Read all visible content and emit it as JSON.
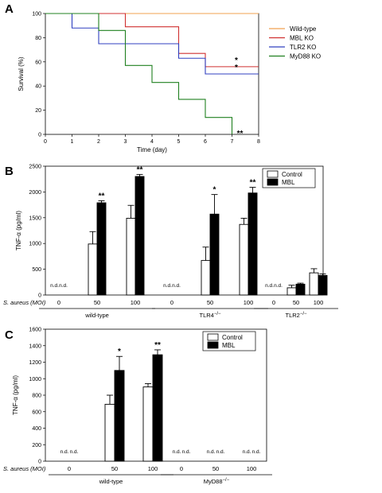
{
  "chart_data": [
    {
      "panel": "A",
      "type": "line",
      "xlabel": "Time (day)",
      "ylabel": "Survival (%)",
      "xlim": [
        0,
        8
      ],
      "ylim": [
        0,
        100
      ],
      "xticks": [
        "0",
        "1",
        "2",
        "3",
        "4",
        "5",
        "6",
        "7",
        "8"
      ],
      "yticks": [
        "0",
        "20",
        "40",
        "60",
        "80",
        "100"
      ],
      "legend_position": "right",
      "series": [
        {
          "name": "Wild-type",
          "color": "#f0a050",
          "x": [
            0,
            8
          ],
          "y": [
            100,
            100
          ],
          "sig": ""
        },
        {
          "name": "MBL KO",
          "color": "#d03030",
          "x": [
            0,
            2,
            3,
            5,
            6,
            8
          ],
          "y": [
            100,
            100,
            89,
            67,
            56,
            56
          ],
          "sig": "*"
        },
        {
          "name": "TLR2 KO",
          "color": "#3040c0",
          "x": [
            0,
            1,
            2,
            5,
            6,
            8
          ],
          "y": [
            100,
            88,
            75,
            63,
            50,
            50
          ],
          "sig": "*"
        },
        {
          "name": "MyD88 KO",
          "color": "#208020",
          "x": [
            0,
            2,
            3,
            4,
            5,
            6,
            7,
            7
          ],
          "y": [
            100,
            86,
            57,
            43,
            29,
            14,
            14,
            0
          ],
          "sig": "**"
        }
      ]
    },
    {
      "panel": "B",
      "type": "bar",
      "ylabel": "TNF-α (pg/ml)",
      "ylim": [
        0,
        2500
      ],
      "yticks": [
        "0",
        "500",
        "1000",
        "1500",
        "2000",
        "2500"
      ],
      "xaxis_prefix": "S. aureus (MOI)",
      "legend": [
        "Control",
        "MBL"
      ],
      "groups": [
        {
          "label": "wild-type",
          "sup": "",
          "categories": [
            "0",
            "50",
            "100"
          ],
          "control": [
            0,
            990,
            1490
          ],
          "control_err": [
            0,
            240,
            250
          ],
          "mbl": [
            0,
            1790,
            2300
          ],
          "mbl_err": [
            0,
            40,
            40
          ],
          "nd": [
            true,
            false,
            false
          ],
          "sig": [
            "",
            "**",
            "**"
          ]
        },
        {
          "label": "TLR4",
          "sup": "−/−",
          "categories": [
            "0",
            "50",
            "100"
          ],
          "control": [
            0,
            670,
            1370
          ],
          "control_err": [
            0,
            260,
            120
          ],
          "mbl": [
            0,
            1570,
            1980
          ],
          "mbl_err": [
            0,
            380,
            110
          ],
          "nd": [
            true,
            false,
            false
          ],
          "sig": [
            "",
            "*",
            "**"
          ]
        },
        {
          "label": "TLR2",
          "sup": "−/−",
          "categories": [
            "0",
            "50",
            "100"
          ],
          "control": [
            0,
            140,
            430
          ],
          "control_err": [
            0,
            50,
            80
          ],
          "mbl": [
            0,
            210,
            380
          ],
          "mbl_err": [
            0,
            20,
            30
          ],
          "nd": [
            true,
            false,
            false
          ],
          "sig": [
            "",
            "",
            ""
          ]
        }
      ],
      "nd_label": "n.d."
    },
    {
      "panel": "C",
      "type": "bar",
      "ylabel": "TNF-α (pg/ml)",
      "ylim": [
        0,
        1600
      ],
      "yticks": [
        "0",
        "200",
        "400",
        "600",
        "800",
        "1000",
        "1200",
        "1400",
        "1600"
      ],
      "xaxis_prefix": "S. aureus (MOI)",
      "legend": [
        "Control",
        "MBL"
      ],
      "groups": [
        {
          "label": "wild-type",
          "sup": "",
          "categories": [
            "0",
            "50",
            "100"
          ],
          "control": [
            0,
            690,
            900
          ],
          "control_err": [
            0,
            110,
            40
          ],
          "mbl": [
            0,
            1100,
            1290
          ],
          "mbl_err": [
            0,
            170,
            60
          ],
          "nd": [
            true,
            false,
            false
          ],
          "sig": [
            "",
            "*",
            "**"
          ]
        },
        {
          "label": "MyD88",
          "sup": "−/−",
          "categories": [
            "0",
            "50",
            "100"
          ],
          "control": [
            0,
            0,
            0
          ],
          "control_err": [
            0,
            0,
            0
          ],
          "mbl": [
            0,
            0,
            0
          ],
          "mbl_err": [
            0,
            0,
            0
          ],
          "nd": [
            true,
            true,
            true
          ],
          "sig": [
            "",
            "",
            ""
          ]
        }
      ],
      "nd_label": "n.d."
    }
  ]
}
